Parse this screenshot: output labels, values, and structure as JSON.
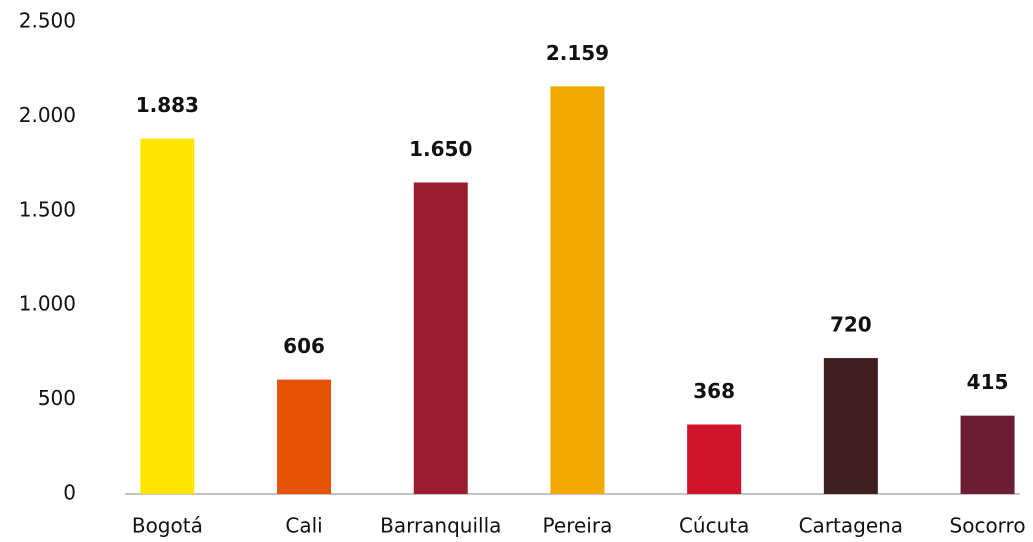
{
  "chart_data": {
    "type": "bar",
    "categories": [
      "Bogotá",
      "Cali",
      "Barranquilla",
      "Pereira",
      "Cúcuta",
      "Cartagena",
      "Socorro"
    ],
    "values": [
      1883,
      606,
      1650,
      2159,
      368,
      720,
      415
    ],
    "value_labels": [
      "1.883",
      "606",
      "1.650",
      "2.159",
      "368",
      "720",
      "415"
    ],
    "colors": [
      "#ffe600",
      "#e35205",
      "#9b1b30",
      "#f2a900",
      "#d0142c",
      "#3d1f22",
      "#6a1d34"
    ],
    "ylim": [
      0,
      2500
    ],
    "yticks": [
      0,
      500,
      {
        "value": 1000,
        "label": "1.000"
      },
      {
        "value": 1500,
        "label": "1.500"
      },
      {
        "value": 2000,
        "label": "2.000"
      },
      {
        "value": 2500,
        "label": "2.500"
      }
    ],
    "grid": false
  }
}
